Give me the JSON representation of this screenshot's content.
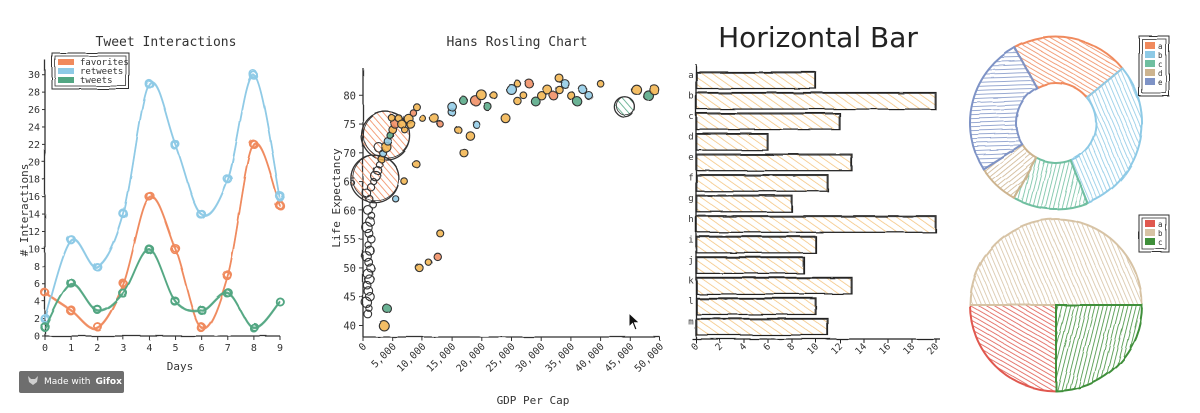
{
  "colors": {
    "favorites": "#f08a5d",
    "retweets": "#8ecae6",
    "tweets": "#52a682",
    "gold": "#f2b34a",
    "barfill": "#f4c27a",
    "ink": "#2b2b2b",
    "donut": [
      "#f08a5d",
      "#8ecae6",
      "#6fbfa0",
      "#cdb48f",
      "#7e93c6"
    ],
    "pie": [
      "#e0584f",
      "#d7c3a5",
      "#3f8f3a"
    ]
  },
  "chart_data": [
    {
      "type": "line",
      "title": "Tweet Interactions",
      "xlabel": "Days",
      "ylabel": "# Interactions",
      "x": [
        0,
        1,
        2,
        3,
        4,
        5,
        6,
        7,
        8,
        9
      ],
      "xticks": [
        "0",
        "1",
        "2",
        "3",
        "4",
        "5",
        "6",
        "7",
        "8",
        "9"
      ],
      "yticks": [
        "0",
        "2",
        "4",
        "6",
        "8",
        "10",
        "12",
        "14",
        "16",
        "18",
        "20",
        "22",
        "24",
        "26",
        "28",
        "30"
      ],
      "xlim": [
        0,
        9
      ],
      "ylim": [
        0,
        31
      ],
      "legend_position": "top-left",
      "series": [
        {
          "name": "favorites",
          "color_key": "favorites",
          "values": [
            5,
            3,
            1,
            6,
            16,
            10,
            1,
            7,
            22,
            15
          ]
        },
        {
          "name": "retweets",
          "color_key": "retweets",
          "values": [
            2,
            11,
            8,
            14,
            29,
            22,
            14,
            18,
            30,
            16
          ]
        },
        {
          "name": "tweets",
          "color_key": "tweets",
          "values": [
            1,
            6,
            3,
            5,
            10,
            4,
            3,
            5,
            1,
            4
          ]
        }
      ]
    },
    {
      "type": "scatter",
      "title": "Hans Rosling Chart",
      "xlabel": "GDP Per Cap",
      "ylabel": "Life Expectancy",
      "xticks": [
        "0",
        "5,000",
        "10,000",
        "15,000",
        "20,000",
        "25,000",
        "30,000",
        "35,000",
        "40,000",
        "45,000",
        "50,000"
      ],
      "yticks": [
        "40",
        "45",
        "50",
        "55",
        "60",
        "65",
        "70",
        "75",
        "80"
      ],
      "xlim": [
        0,
        50000
      ],
      "ylim": [
        38,
        83
      ],
      "large_bubbles": [
        {
          "x": 3800,
          "y": 73,
          "r": 24,
          "color_key": "favorites"
        },
        {
          "x": 2000,
          "y": 65.5,
          "r": 24,
          "color_key": "favorites"
        },
        {
          "x": 44000,
          "y": 78,
          "r": 10,
          "color_key": "tweets"
        }
      ],
      "points": [
        [
          800,
          42
        ],
        [
          1000,
          43
        ],
        [
          600,
          44
        ],
        [
          1200,
          45
        ],
        [
          900,
          46
        ],
        [
          700,
          47
        ],
        [
          1100,
          48
        ],
        [
          800,
          49
        ],
        [
          1300,
          50
        ],
        [
          950,
          51
        ],
        [
          600,
          52
        ],
        [
          1150,
          53
        ],
        [
          850,
          54
        ],
        [
          1400,
          55
        ],
        [
          1000,
          56
        ],
        [
          700,
          57
        ],
        [
          1250,
          58
        ],
        [
          1500,
          59
        ],
        [
          900,
          60
        ],
        [
          1700,
          61
        ],
        [
          1100,
          62
        ],
        [
          600,
          63
        ],
        [
          1350,
          64
        ],
        [
          1800,
          65
        ],
        [
          2100,
          66
        ],
        [
          2400,
          67
        ],
        [
          2700,
          68
        ],
        [
          3000,
          69
        ],
        [
          3300,
          70
        ],
        [
          2600,
          71
        ],
        [
          3900,
          71
        ],
        [
          4200,
          72
        ],
        [
          4600,
          73
        ],
        [
          5000,
          74
        ],
        [
          5400,
          75
        ],
        [
          4900,
          76
        ],
        [
          6000,
          76
        ],
        [
          6500,
          75
        ],
        [
          7000,
          74
        ],
        [
          7600,
          76
        ],
        [
          8000,
          75
        ],
        [
          8400,
          77
        ],
        [
          9000,
          78
        ],
        [
          10000,
          76
        ],
        [
          12000,
          76
        ],
        [
          13000,
          75
        ],
        [
          15000,
          77
        ],
        [
          16000,
          74
        ],
        [
          17000,
          79
        ],
        [
          18000,
          73
        ],
        [
          19000,
          79
        ],
        [
          20000,
          80
        ],
        [
          21000,
          78
        ],
        [
          22000,
          80
        ],
        [
          24000,
          76
        ],
        [
          25000,
          81
        ],
        [
          26000,
          79
        ],
        [
          27000,
          80
        ],
        [
          28000,
          82
        ],
        [
          29000,
          79
        ],
        [
          30000,
          80
        ],
        [
          31000,
          81
        ],
        [
          32000,
          80
        ],
        [
          33000,
          81
        ],
        [
          34000,
          82
        ],
        [
          35000,
          80
        ],
        [
          36000,
          79
        ],
        [
          37000,
          81
        ],
        [
          38000,
          80
        ],
        [
          40000,
          82
        ],
        [
          46000,
          81
        ],
        [
          48000,
          80
        ],
        [
          49000,
          81
        ],
        [
          11000,
          51
        ],
        [
          12500,
          52
        ],
        [
          13000,
          56
        ],
        [
          9500,
          50
        ],
        [
          3500,
          40
        ],
        [
          4000,
          43
        ],
        [
          5500,
          62
        ],
        [
          7000,
          65
        ],
        [
          9000,
          68
        ],
        [
          17000,
          70
        ],
        [
          19000,
          75
        ],
        [
          15000,
          78
        ],
        [
          26000,
          82
        ],
        [
          33000,
          83
        ]
      ]
    },
    {
      "type": "bar",
      "orientation": "horizontal",
      "title": "Horizontal Bar",
      "categories": [
        "a",
        "b",
        "c",
        "d",
        "e",
        "f",
        "g",
        "h",
        "i",
        "j",
        "k",
        "l",
        "m"
      ],
      "values": [
        10,
        20,
        12,
        6,
        13,
        11,
        8,
        20,
        10,
        9,
        13,
        10,
        11
      ],
      "xticks": [
        "0",
        "2",
        "4",
        "6",
        "8",
        "10",
        "12",
        "14",
        "16",
        "18",
        "20"
      ],
      "xlim": [
        0,
        20
      ]
    },
    {
      "type": "pie",
      "variant": "donut",
      "categories": [
        "a",
        "b",
        "c",
        "d",
        "e"
      ],
      "values": [
        22,
        30,
        14,
        8,
        26
      ],
      "legend_position": "top-right"
    },
    {
      "type": "pie",
      "categories": [
        "a",
        "b",
        "c"
      ],
      "values": [
        25,
        50,
        25
      ],
      "legend_position": "top-right"
    }
  ],
  "badge": {
    "prefix": "Made with",
    "brand": "Gifox"
  }
}
